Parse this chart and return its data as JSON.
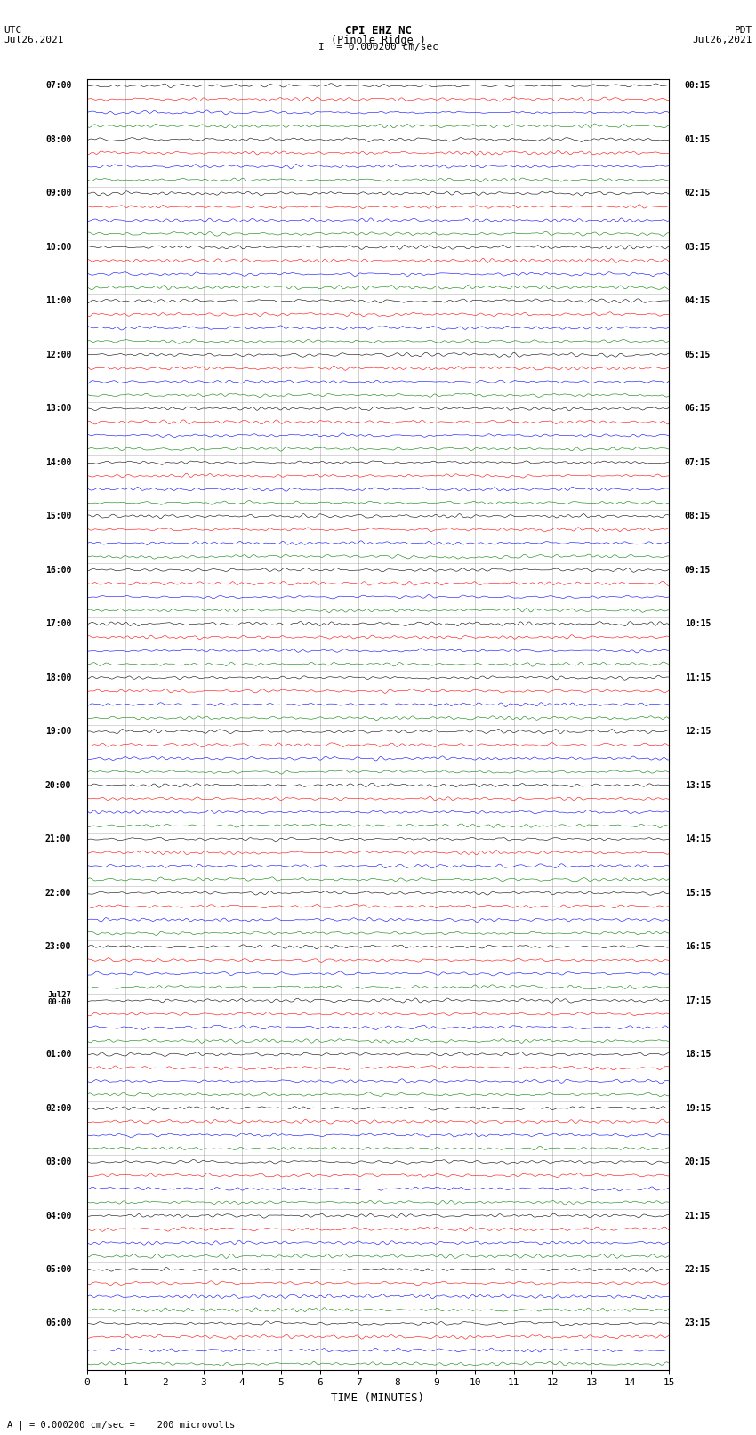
{
  "title_line1": "CPI EHZ NC",
  "title_line2": "(Pinole Ridge )",
  "title_scale": "I  = 0.000200 cm/sec",
  "left_label_top": "UTC",
  "left_label_date": "Jul26,2021",
  "right_label_top": "PDT",
  "right_label_date": "Jul26,2021",
  "bottom_label": "TIME (MINUTES)",
  "footer_text": "= 0.000200 cm/sec =    200 microvolts",
  "xlabel_ticks": [
    0,
    1,
    2,
    3,
    4,
    5,
    6,
    7,
    8,
    9,
    10,
    11,
    12,
    13,
    14,
    15
  ],
  "colors": [
    "black",
    "red",
    "blue",
    "green"
  ],
  "n_hours": 24,
  "traces_per_hour": 4,
  "background_color": "white",
  "grid_color": "#888888",
  "noise_amplitude": 0.38,
  "utc_hour_labels": [
    "07:00",
    "08:00",
    "09:00",
    "10:00",
    "11:00",
    "12:00",
    "13:00",
    "14:00",
    "15:00",
    "16:00",
    "17:00",
    "18:00",
    "19:00",
    "20:00",
    "21:00",
    "22:00",
    "23:00",
    "Jul27\n00:00",
    "01:00",
    "02:00",
    "03:00",
    "04:00",
    "05:00",
    "06:00"
  ],
  "pdt_hour_labels": [
    "00:15",
    "01:15",
    "02:15",
    "03:15",
    "04:15",
    "05:15",
    "06:15",
    "07:15",
    "08:15",
    "09:15",
    "10:15",
    "11:15",
    "12:15",
    "13:15",
    "14:15",
    "15:15",
    "16:15",
    "17:15",
    "18:15",
    "19:15",
    "20:15",
    "21:15",
    "22:15",
    "23:15"
  ]
}
